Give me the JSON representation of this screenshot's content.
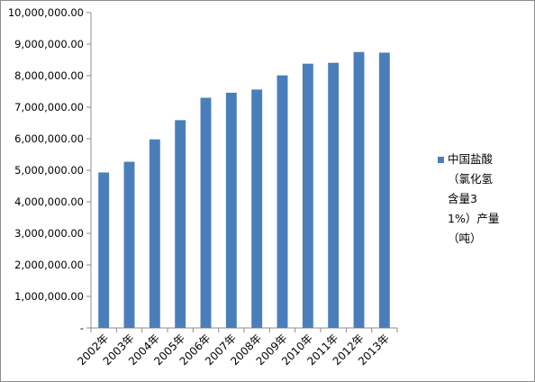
{
  "chart_data": {
    "type": "bar",
    "categories": [
      "2002年",
      "2003年",
      "2004年",
      "2005年",
      "2006年",
      "2007年",
      "2008年",
      "2009年",
      "2010年",
      "2011年",
      "2012年",
      "2013年"
    ],
    "series": [
      {
        "name": "中国盐酸（氯化氢含量31%）产量（吨）",
        "values": [
          4930000,
          5270000,
          5980000,
          6590000,
          7300000,
          7460000,
          7560000,
          8010000,
          8380000,
          8410000,
          8750000,
          8730000
        ]
      }
    ],
    "ylim": [
      0,
      10000000
    ],
    "y_ticks": [
      {
        "value": 0,
        "label": "-"
      },
      {
        "value": 1000000,
        "label": "1,000,000.00"
      },
      {
        "value": 2000000,
        "label": "2,000,000.00"
      },
      {
        "value": 3000000,
        "label": "3,000,000.00"
      },
      {
        "value": 4000000,
        "label": "4,000,000.00"
      },
      {
        "value": 5000000,
        "label": "5,000,000.00"
      },
      {
        "value": 6000000,
        "label": "6,000,000.00"
      },
      {
        "value": 7000000,
        "label": "7,000,000.00"
      },
      {
        "value": 8000000,
        "label": "8,000,000.00"
      },
      {
        "value": 9000000,
        "label": "9,000,000.00"
      },
      {
        "value": 10000000,
        "label": "10,000,000.00"
      }
    ],
    "title": "",
    "xlabel": "",
    "ylabel": "",
    "grid": false,
    "legend_position": "right",
    "bar_color": "#4a7ebb"
  }
}
